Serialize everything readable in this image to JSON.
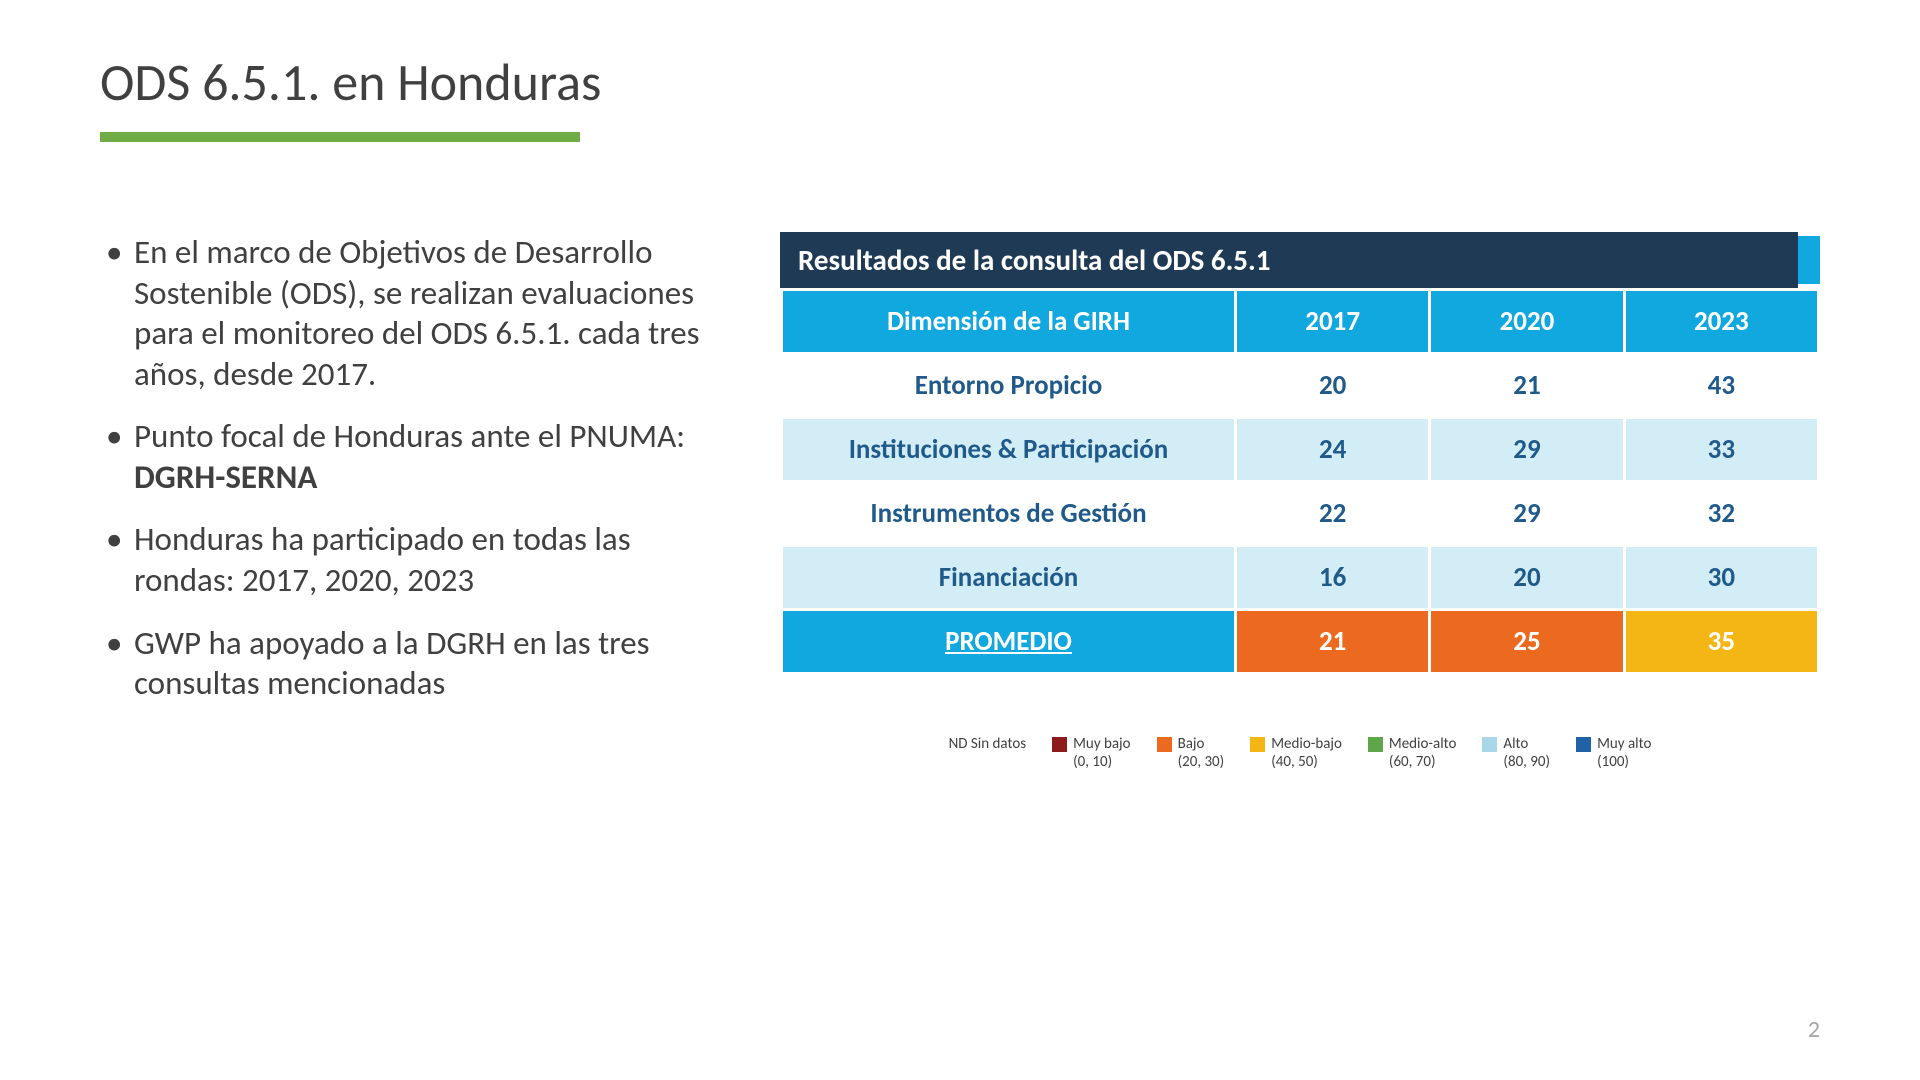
{
  "title": "ODS 6.5.1. en Honduras",
  "accent_color": "#6fac45",
  "bullets": [
    {
      "text": "En el marco de Objetivos de Desarrollo Sostenible (ODS), se realizan evaluaciones para el monitoreo del ODS 6.5.1. cada tres años, desde 2017."
    },
    {
      "prefix": "Punto focal de Honduras ante el PNUMA: ",
      "bold": "DGRH-SERNA"
    },
    {
      "text": "Honduras ha participado en todas las rondas: 2017, 2020, 2023"
    },
    {
      "text": "GWP ha apoyado a la DGRH en las tres consultas mencionadas"
    }
  ],
  "table": {
    "title": "Resultados de la consulta del ODS 6.5.1",
    "title_bg": "#1f3a54",
    "title_cap_bg": "#11a7df",
    "header_bg": "#11a7df",
    "header_text": "#ffffff",
    "row_light_bg": "#d3edf7",
    "row_white_bg": "#ffffff",
    "cell_text_color": "#1f5a8a",
    "columns": [
      "Dimensión de la GIRH",
      "2017",
      "2020",
      "2023"
    ],
    "rows": [
      {
        "label": "Entorno Propicio",
        "values": [
          "20",
          "21",
          "43"
        ],
        "stripe": "white"
      },
      {
        "label": "Instituciones & Participación",
        "values": [
          "24",
          "29",
          "33"
        ],
        "stripe": "light"
      },
      {
        "label": "Instrumentos de Gestión",
        "values": [
          "22",
          "29",
          "32"
        ],
        "stripe": "white"
      },
      {
        "label": "Financiación",
        "values": [
          "16",
          "20",
          "30"
        ],
        "stripe": "light"
      }
    ],
    "promedio": {
      "label": "PROMEDIO",
      "label_bg": "#11a7df",
      "cells": [
        {
          "value": "21",
          "bg": "#ec6a1f",
          "color": "#ffffff"
        },
        {
          "value": "25",
          "bg": "#ec6a1f",
          "color": "#ffffff"
        },
        {
          "value": "35",
          "bg": "#f4b614",
          "color": "#ffffff"
        }
      ]
    }
  },
  "legend": {
    "nd_label": "ND  Sin datos",
    "items": [
      {
        "label": "Muy bajo",
        "range": "(0, 10)",
        "color": "#8e1b1b"
      },
      {
        "label": "Bajo",
        "range": "(20, 30)",
        "color": "#ec6a1f"
      },
      {
        "label": "Medio-bajo",
        "range": "(40, 50)",
        "color": "#f4b614"
      },
      {
        "label": "Medio-alto",
        "range": "(60, 70)",
        "color": "#5fa648"
      },
      {
        "label": "Alto",
        "range": "(80, 90)",
        "color": "#a8d7ea"
      },
      {
        "label": "Muy alto",
        "range": "(100)",
        "color": "#1f62a5"
      }
    ]
  },
  "page_number": "2"
}
